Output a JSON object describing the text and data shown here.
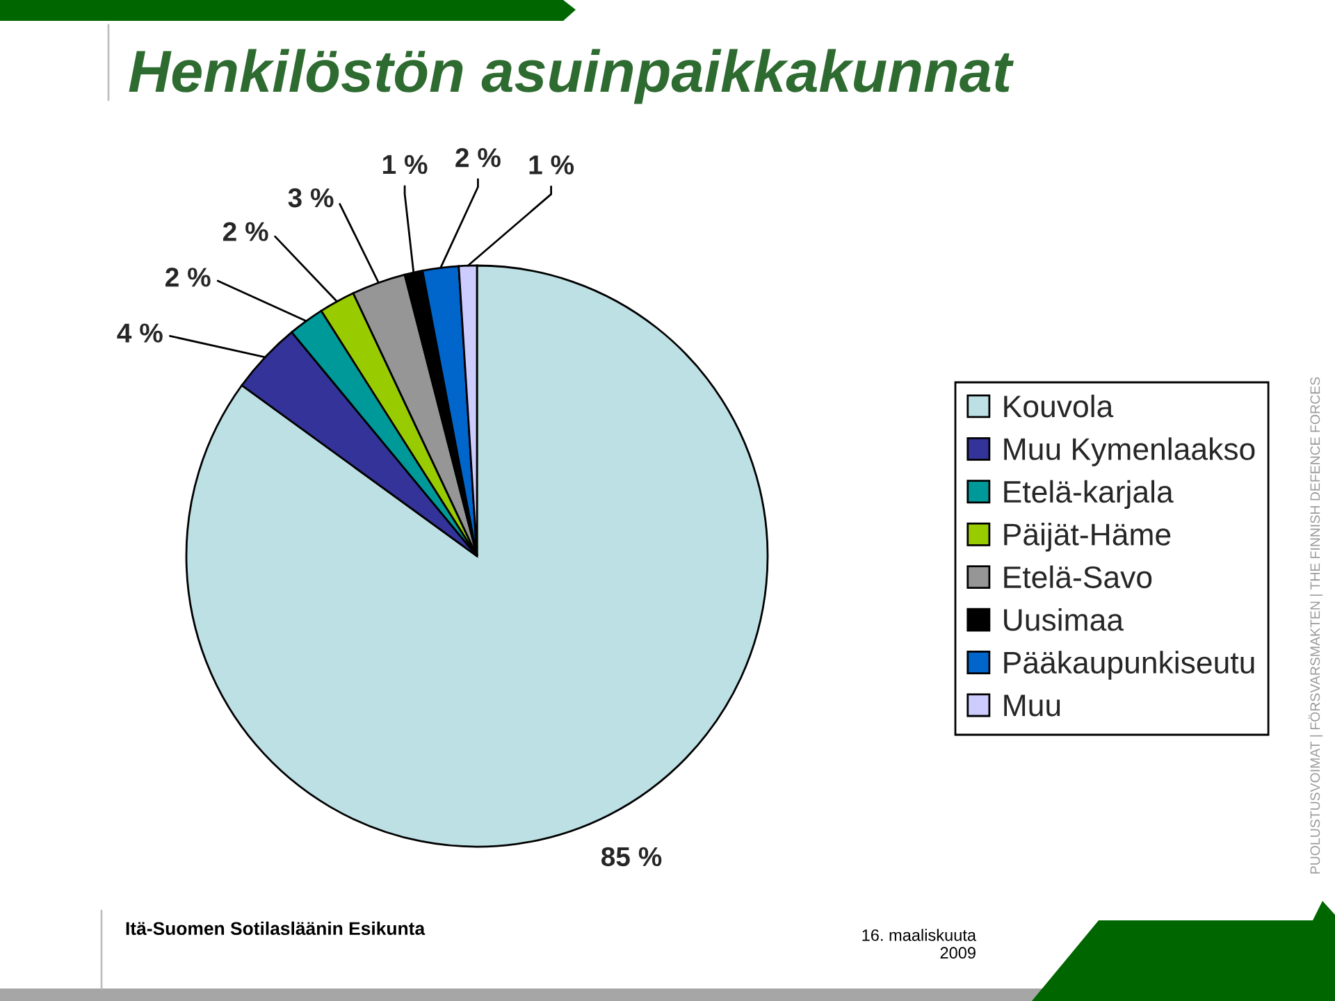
{
  "chart_data": {
    "type": "pie",
    "title": "Henkilöstön asuinpaikkakunnat",
    "categories": [
      "Kouvola",
      "Muu Kymenlaakso",
      "Etelä-karjala",
      "Päijät-Häme",
      "Etelä-Savo",
      "Uusimaa",
      "Pääkaupunkiseutu",
      "Muu"
    ],
    "values": [
      85,
      4,
      2,
      2,
      3,
      1,
      2,
      1
    ],
    "colors": [
      "#bde0e4",
      "#333399",
      "#009999",
      "#99cc00",
      "#969696",
      "#000000",
      "#0066cc",
      "#ccccff"
    ],
    "value_labels": [
      "85 %",
      "4 %",
      "2 %",
      "2 %",
      "3 %",
      "1 %",
      "2 %",
      "1 %"
    ],
    "legend": "right",
    "annotations": [
      "Itä-Suomen Sotilasläänin Esikunta",
      "16. maaliskuuta\n2009",
      "PUOLUSTUSVOIMAT | FÖRSVARSMAKTEN | THE FINNISH DEFENCE FORCES"
    ]
  }
}
